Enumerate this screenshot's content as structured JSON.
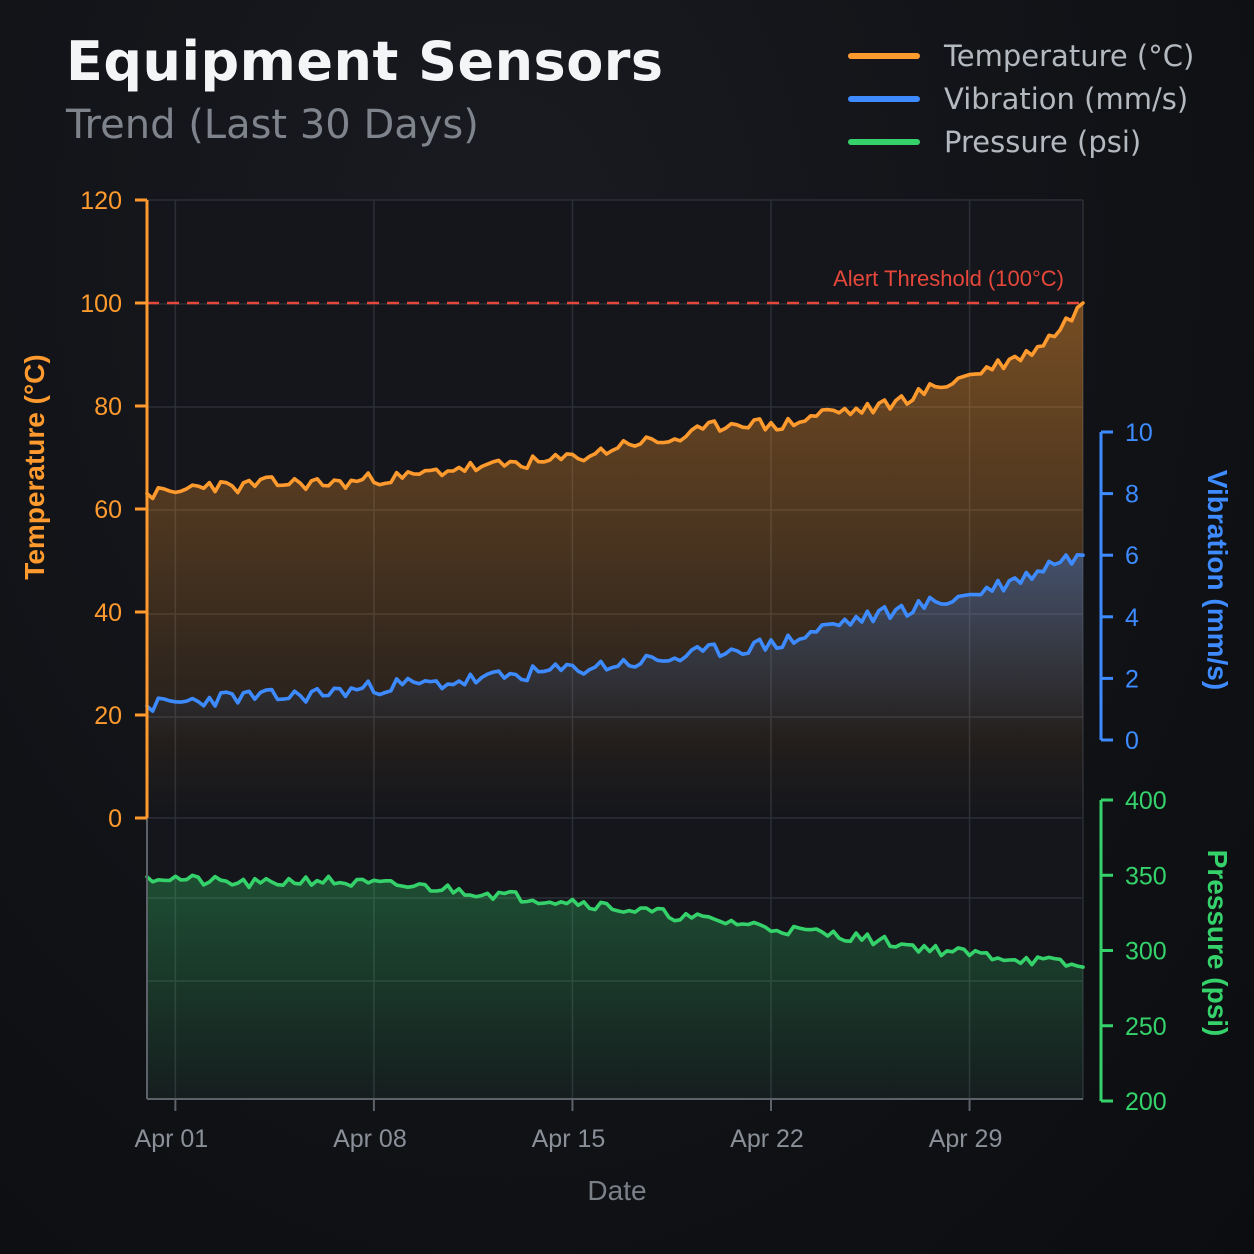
{
  "header": {
    "title": "Equipment Sensors",
    "subtitle": "Trend (Last 30 Days)"
  },
  "colors": {
    "temperature": "#ff9a2e",
    "vibration": "#3d8bff",
    "pressure": "#35d26b",
    "threshold": "#e5483a",
    "grid": "#2c2f36",
    "axis_text": "#8a8f98"
  },
  "chart_data": {
    "type": "line",
    "x_label": "Date",
    "x_ticks": [
      "Apr 01",
      "Apr 08",
      "Apr 15",
      "Apr 22",
      "Apr 29"
    ],
    "x_range": [
      "Mar 31",
      "May 03"
    ],
    "grid": true,
    "legend_position": "top-right",
    "threshold": {
      "label": "Alert Threshold (100°C)",
      "value": 100,
      "axis": "temperature"
    },
    "axes": {
      "temperature": {
        "label": "Temperature (°C)",
        "range": [
          0,
          120
        ],
        "ticks": [
          "0",
          "20",
          "40",
          "60",
          "80",
          "100",
          "120"
        ]
      },
      "vibration": {
        "label": "Vibration (mm/s)",
        "range": [
          0,
          10
        ],
        "ticks": [
          "0",
          "2",
          "4",
          "6",
          "8",
          "10"
        ]
      },
      "pressure": {
        "label": "Pressure (psi)",
        "range": [
          200,
          400
        ],
        "ticks": [
          "200",
          "250",
          "300",
          "350",
          "400"
        ]
      }
    },
    "series": [
      {
        "name": "Temperature (°C)",
        "axis": "temperature",
        "x": [
          "Mar 31",
          "Apr 01",
          "Apr 02",
          "Apr 03",
          "Apr 04",
          "Apr 05",
          "Apr 06",
          "Apr 07",
          "Apr 08",
          "Apr 09",
          "Apr 10",
          "Apr 11",
          "Apr 12",
          "Apr 13",
          "Apr 14",
          "Apr 15",
          "Apr 16",
          "Apr 17",
          "Apr 18",
          "Apr 19",
          "Apr 20",
          "Apr 21",
          "Apr 22",
          "Apr 23",
          "Apr 24",
          "Apr 25",
          "Apr 26",
          "Apr 27",
          "Apr 28",
          "Apr 29",
          "Apr 30",
          "May 01",
          "May 02",
          "May 03"
        ],
        "y": [
          63,
          63,
          65,
          64,
          65,
          65,
          65,
          65,
          66,
          66,
          67,
          68,
          68,
          69,
          69,
          70,
          71,
          73,
          73,
          74,
          76,
          77,
          76,
          77,
          79,
          79,
          80,
          82,
          84,
          86,
          88,
          90,
          94,
          100
        ]
      },
      {
        "name": "Vibration (mm/s)",
        "axis": "vibration",
        "x": [
          "Mar 31",
          "Apr 01",
          "Apr 02",
          "Apr 03",
          "Apr 04",
          "Apr 05",
          "Apr 06",
          "Apr 07",
          "Apr 08",
          "Apr 09",
          "Apr 10",
          "Apr 11",
          "Apr 12",
          "Apr 13",
          "Apr 14",
          "Apr 15",
          "Apr 16",
          "Apr 17",
          "Apr 18",
          "Apr 19",
          "Apr 20",
          "Apr 21",
          "Apr 22",
          "Apr 23",
          "Apr 24",
          "Apr 25",
          "Apr 26",
          "Apr 27",
          "Apr 28",
          "Apr 29",
          "Apr 30",
          "May 01",
          "May 02",
          "May 03"
        ],
        "y": [
          1.1,
          1.2,
          1.3,
          1.4,
          1.4,
          1.4,
          1.5,
          1.6,
          1.7,
          1.8,
          1.8,
          1.9,
          2.0,
          2.1,
          2.2,
          2.3,
          2.4,
          2.5,
          2.6,
          2.7,
          2.9,
          3.0,
          3.1,
          3.3,
          3.7,
          3.9,
          4.1,
          4.3,
          4.5,
          4.7,
          5.0,
          5.3,
          5.8,
          6.0
        ]
      },
      {
        "name": "Pressure (psi)",
        "axis": "pressure",
        "x": [
          "Mar 31",
          "Apr 01",
          "Apr 02",
          "Apr 03",
          "Apr 04",
          "Apr 05",
          "Apr 06",
          "Apr 07",
          "Apr 08",
          "Apr 09",
          "Apr 10",
          "Apr 11",
          "Apr 12",
          "Apr 13",
          "Apr 14",
          "Apr 15",
          "Apr 16",
          "Apr 17",
          "Apr 18",
          "Apr 19",
          "Apr 20",
          "Apr 21",
          "Apr 22",
          "Apr 23",
          "Apr 24",
          "Apr 25",
          "Apr 26",
          "Apr 27",
          "Apr 28",
          "Apr 29",
          "Apr 30",
          "May 01",
          "May 02",
          "May 03"
        ],
        "y": [
          349,
          348,
          346,
          345,
          344,
          346,
          347,
          345,
          344,
          343,
          342,
          340,
          338,
          336,
          334,
          333,
          330,
          327,
          325,
          322,
          320,
          318,
          315,
          313,
          311,
          309,
          306,
          303,
          300,
          298,
          296,
          294,
          292,
          289
        ]
      }
    ]
  }
}
